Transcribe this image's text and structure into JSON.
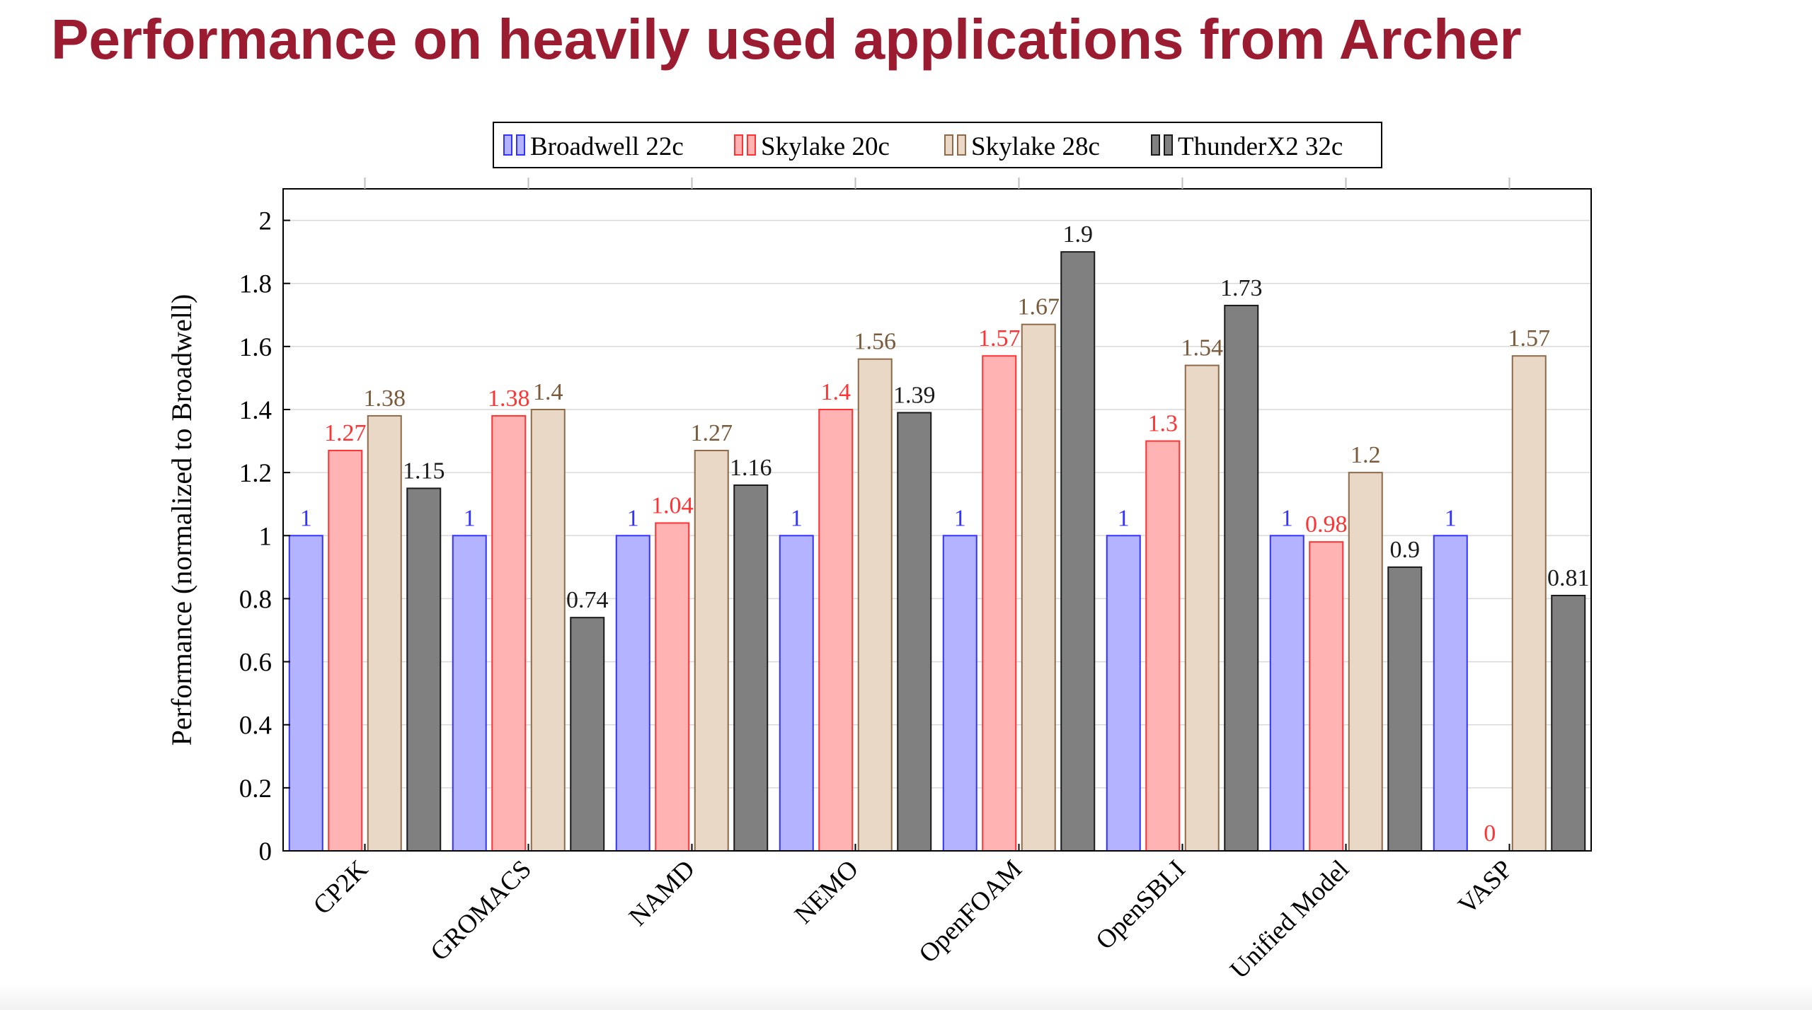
{
  "slide": {
    "title": "Performance on heavily used applications from Archer"
  },
  "chart_data": {
    "type": "bar",
    "title": "",
    "xlabel": "",
    "ylabel": "Performance (normalized to Broadwell)",
    "ylim": [
      0,
      2.1
    ],
    "yticks": [
      0,
      0.2,
      0.4,
      0.6,
      0.8,
      1,
      1.2,
      1.4,
      1.6,
      1.8,
      2
    ],
    "ytick_labels": [
      "0",
      "0.2",
      "0.4",
      "0.6",
      "0.8",
      "1",
      "1.2",
      "1.4",
      "1.6",
      "1.8",
      "2"
    ],
    "grid": true,
    "legend_position": "top-center",
    "categories": [
      "CP2K",
      "GROMACS",
      "NAMD",
      "NEMO",
      "OpenFOAM",
      "OpenSBLI",
      "Unified Model",
      "VASP"
    ],
    "series": [
      {
        "name": "Broadwell 22c",
        "fill": "#b3b3ff",
        "stroke": "#3333ff",
        "label_color": "#3333ff",
        "values": [
          1,
          1,
          1,
          1,
          1,
          1,
          1,
          1
        ],
        "labels": [
          "1",
          "1",
          "1",
          "1",
          "1",
          "1",
          "1",
          "1"
        ]
      },
      {
        "name": "Skylake 20c",
        "fill": "#ffb3b3",
        "stroke": "#ff3333",
        "label_color": "#ff3333",
        "values": [
          1.27,
          1.38,
          1.04,
          1.4,
          1.57,
          1.3,
          0.98,
          0
        ],
        "labels": [
          "1.27",
          "1.38",
          "1.04",
          "1.4",
          "1.57",
          "1.3",
          "0.98",
          "0"
        ]
      },
      {
        "name": "Skylake 28c",
        "fill": "#ead8c6",
        "stroke": "#8c6a4a",
        "label_color": "#7a5a3a",
        "values": [
          1.38,
          1.4,
          1.27,
          1.56,
          1.67,
          1.54,
          1.2,
          1.57
        ],
        "labels": [
          "1.38",
          "1.4",
          "1.27",
          "1.56",
          "1.67",
          "1.54",
          "1.2",
          "1.57"
        ]
      },
      {
        "name": "ThunderX2 32c",
        "fill": "#808080",
        "stroke": "#1a1a1a",
        "label_color": "#1a1a1a",
        "values": [
          1.15,
          0.74,
          1.16,
          1.39,
          1.9,
          1.73,
          0.9,
          0.81
        ],
        "labels": [
          "1.15",
          "0.74",
          "1.16",
          "1.39",
          "1.9",
          "1.73",
          "0.9",
          "0.81"
        ]
      }
    ]
  }
}
